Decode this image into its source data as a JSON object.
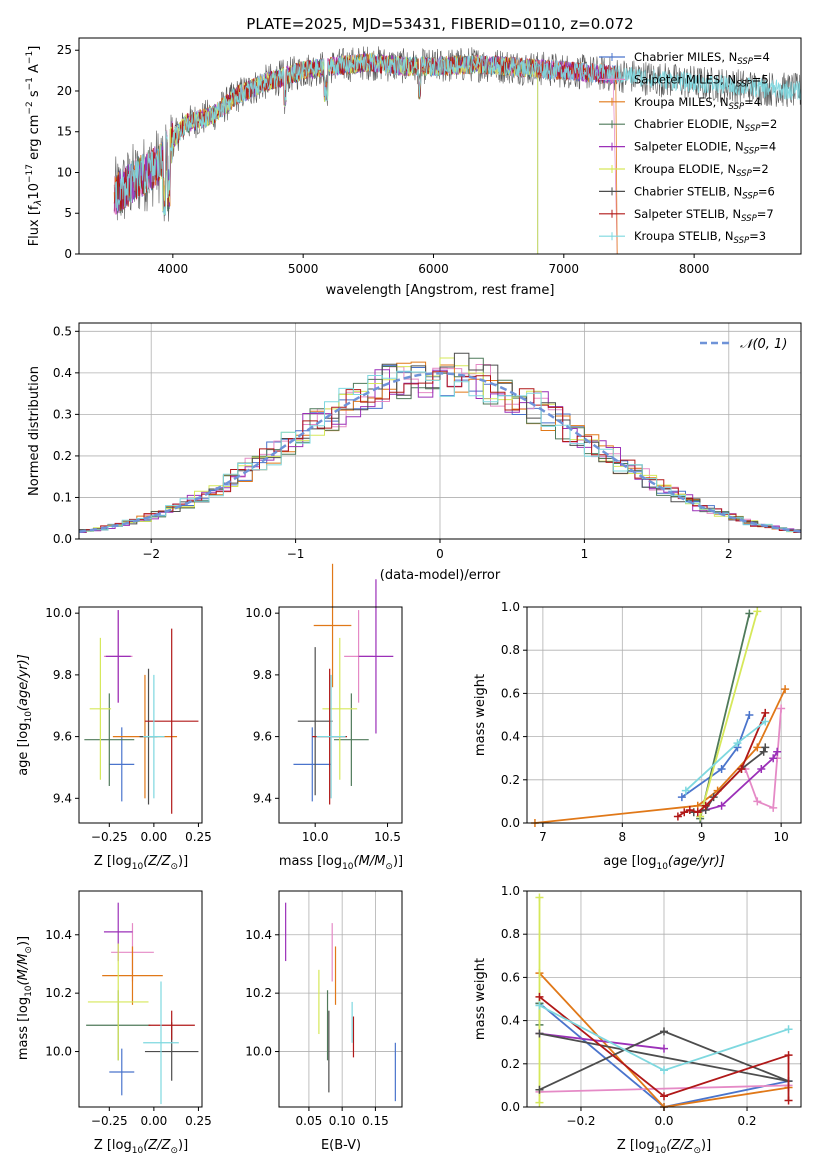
{
  "colors": {
    "chabrier_miles": "#4a74cc",
    "salpeter_miles": "#e58ac6",
    "kroupa_miles": "#e07818",
    "chabrier_elodie": "#4f7a5a",
    "salpeter_elodie": "#9b30b8",
    "kroupa_elodie": "#d6e85a",
    "chabrier_stelib": "#4d4d4d",
    "salpeter_stelib": "#b01818",
    "kroupa_stelib": "#7ed8df",
    "grid": "#b0b0b0",
    "normal_curve": "#6f93d8"
  },
  "spectrum": {
    "title": "PLATE=2025, MJD=53431, FIBERID=0110, z=0.072",
    "xlabel": "wavelength [Angstrom, rest frame]",
    "ylabel_main": "Flux [f",
    "ylabel_lambda": "λ",
    "ylabel_10": "10",
    "ylabel_exp1": "−17",
    "ylabel_unit": " erg cm",
    "ylabel_exp2": "−2",
    "ylabel_s": " s",
    "ylabel_exp3": "−1",
    "ylabel_A": " A",
    "ylabel_exp4": "−1",
    "ylabel_close": "]",
    "xticks": [
      "4000",
      "5000",
      "6000",
      "7000",
      "8000"
    ],
    "yticks": [
      "0",
      "5",
      "10",
      "15",
      "20",
      "25"
    ],
    "legend": [
      {
        "label": "Chabrier MILES, N",
        "sub": "SSP",
        "suffix": "=4"
      },
      {
        "label": "Salpeter MILES, N",
        "sub": "SSP",
        "suffix": "=5"
      },
      {
        "label": "Kroupa MILES, N",
        "sub": "SSP",
        "suffix": "=4"
      },
      {
        "label": "Chabrier ELODIE, N",
        "sub": "SSP",
        "suffix": "=2"
      },
      {
        "label": "Salpeter ELODIE, N",
        "sub": "SSP",
        "suffix": "=4"
      },
      {
        "label": "Kroupa ELODIE, N",
        "sub": "SSP",
        "suffix": "=2"
      },
      {
        "label": "Chabrier STELIB, N",
        "sub": "SSP",
        "suffix": "=6"
      },
      {
        "label": "Salpeter STELIB, N",
        "sub": "SSP",
        "suffix": "=7"
      },
      {
        "label": "Kroupa STELIB, N",
        "sub": "SSP",
        "suffix": "=3"
      }
    ]
  },
  "histogram": {
    "xlabel": "(data-model)/error",
    "ylabel": "Normed distribution",
    "xticks": [
      "−2",
      "−1",
      "0",
      "1",
      "2"
    ],
    "yticks": [
      "0.0",
      "0.1",
      "0.2",
      "0.3",
      "0.4",
      "0.5"
    ],
    "legend_label": "𝒩(0, 1)"
  },
  "scatter": {
    "p1_xlabel_a": "Z [log",
    "p1_xlabel_sub": "10",
    "p1_xlabel_b": "(Z/Z",
    "p1_xlabel_sun": "⊙",
    "p1_xlabel_c": ")]",
    "p1_ylabel_a": "age  [log",
    "p1_ylabel_sub": "10",
    "p1_ylabel_b": "(age/yr)]",
    "p2_xlabel_a": "mass [log",
    "p2_xlabel_sub": "10",
    "p2_xlabel_b": "(M/M",
    "p2_xlabel_sun": "⊙",
    "p2_xlabel_c": ")]",
    "p4_ylabel_a": "mass [log",
    "p4_ylabel_sub": "10",
    "p4_ylabel_b": "(M/M",
    "p4_ylabel_sun": "⊙",
    "p4_ylabel_c": ")]",
    "p5_xlabel": "E(B-V)",
    "p3_xlabel_a": "age  [log",
    "p3_xlabel_sub": "10",
    "p3_xlabel_b": "(age/yr)]",
    "weight_ylabel": "mass weight",
    "z_xticks": [
      "−0.25",
      "0.00",
      "0.25"
    ],
    "age_yticks": [
      "9.4",
      "9.6",
      "9.8",
      "10.0"
    ],
    "mass_xticks": [
      "10.0",
      "10.5"
    ],
    "mass_yticks": [
      "10.0",
      "10.2",
      "10.4"
    ],
    "ebv_xticks": [
      "0.05",
      "0.10",
      "0.15"
    ],
    "age_xticks": [
      "7",
      "8",
      "9",
      "10"
    ],
    "weight_yticks": [
      "0.0",
      "0.2",
      "0.4",
      "0.6",
      "0.8",
      "1.0"
    ],
    "zw_xticks": [
      "−0.2",
      "0.0",
      "0.2"
    ]
  },
  "chart_data": [
    {
      "type": "line",
      "title": "PLATE=2025, MJD=53431, FIBERID=0110, z=0.072",
      "xlabel": "wavelength [Angstrom, rest frame]",
      "ylabel": "Flux [fλ10−17 erg cm−2 s−1 A−1]",
      "xlim": [
        3280,
        8820
      ],
      "ylim": [
        0,
        26.5
      ],
      "legend_position": "upper right",
      "series": [
        {
          "name": "Chabrier MILES, NSSP=4"
        },
        {
          "name": "Salpeter MILES, NSSP=5"
        },
        {
          "name": "Kroupa MILES, NSSP=4"
        },
        {
          "name": "Chabrier ELODIE, NSSP=2"
        },
        {
          "name": "Salpeter ELODIE, NSSP=4"
        },
        {
          "name": "Kroupa ELODIE, NSSP=2"
        },
        {
          "name": "Chabrier STELIB, NSSP=6"
        },
        {
          "name": "Salpeter STELIB, NSSP=7"
        },
        {
          "name": "Kroupa STELIB, NSSP=3"
        }
      ],
      "continuum": {
        "x": [
          3550,
          3700,
          3900,
          4000,
          4100,
          4300,
          4500,
          4700,
          5000,
          5200,
          5500,
          5800,
          6000,
          6300,
          6600,
          7000,
          7400,
          8000,
          8800
        ],
        "y": [
          7,
          9,
          11,
          14,
          16,
          17,
          19.5,
          21,
          22.5,
          23,
          23.5,
          23,
          23,
          23.3,
          23,
          22.5,
          22,
          21,
          20
        ]
      }
    },
    {
      "type": "bar",
      "xlabel": "(data-model)/error",
      "ylabel": "Normed distribution",
      "xlim": [
        -2.5,
        2.5
      ],
      "ylim": [
        0,
        0.52
      ],
      "legend_position": "upper right",
      "bin_width": 0.1,
      "normal_pdf": {
        "name": "𝒩(0, 1)",
        "mean": 0,
        "sigma": 1
      }
    },
    {
      "type": "scatter",
      "xlabel": "Z [log10(Z/Z⊙)]",
      "ylabel": "age  [log10(age/yr)]",
      "xlim": [
        -0.42,
        0.27
      ],
      "ylim": [
        9.32,
        10.02
      ],
      "points": [
        {
          "x": -0.18,
          "y": 9.51,
          "xerr": 0.07,
          "yerr": 0.12
        },
        {
          "x": -0.2,
          "y": 9.86,
          "xerr": 0.08,
          "yerr": 0.15
        },
        {
          "x": -0.05,
          "y": 9.6,
          "xerr": 0.18,
          "yerr": 0.2
        },
        {
          "x": -0.25,
          "y": 9.59,
          "xerr": 0.14,
          "yerr": 0.15
        },
        {
          "x": -0.2,
          "y": 9.86,
          "xerr": 0.07,
          "yerr": 0.15
        },
        {
          "x": -0.3,
          "y": 9.69,
          "xerr": 0.06,
          "yerr": 0.23
        },
        {
          "x": -0.03,
          "y": 9.6,
          "xerr": 0.05,
          "yerr": 0.22
        },
        {
          "x": 0.1,
          "y": 9.65,
          "xerr": 0.15,
          "yerr": 0.3
        },
        {
          "x": 0.0,
          "y": 9.6,
          "xerr": 0.06,
          "yerr": 0.2
        }
      ]
    },
    {
      "type": "scatter",
      "xlabel": "mass [log10(M/M⊙)]",
      "ylabel": "",
      "xlim": [
        9.75,
        10.6
      ],
      "ylim": [
        9.32,
        10.02
      ],
      "points": [
        {
          "x": 9.98,
          "y": 9.51,
          "xerr": 0.13,
          "yerr": 0.12
        },
        {
          "x": 10.3,
          "y": 9.86,
          "xerr": 0.1,
          "yerr": 0.15
        },
        {
          "x": 10.12,
          "y": 9.96,
          "xerr": 0.13,
          "yerr": 0.2
        },
        {
          "x": 10.25,
          "y": 9.59,
          "xerr": 0.12,
          "yerr": 0.15
        },
        {
          "x": 10.42,
          "y": 9.86,
          "xerr": 0.12,
          "yerr": 0.25
        },
        {
          "x": 10.17,
          "y": 9.69,
          "xerr": 0.12,
          "yerr": 0.23
        },
        {
          "x": 10.0,
          "y": 9.65,
          "xerr": 0.12,
          "yerr": 0.24
        },
        {
          "x": 10.1,
          "y": 9.6,
          "xerr": 0.12,
          "yerr": 0.22
        },
        {
          "x": 10.11,
          "y": 9.6,
          "xerr": 0.1,
          "yerr": 0.2
        }
      ]
    },
    {
      "type": "line",
      "xlabel": "age  [log10(age/yr)]",
      "ylabel": "mass weight",
      "xlim": [
        6.8,
        10.25
      ],
      "ylim": [
        0,
        1
      ],
      "series": [
        {
          "name": "Chabrier MILES",
          "x": [
            8.75,
            9.25,
            9.45,
            9.6
          ],
          "y": [
            0.12,
            0.25,
            0.35,
            0.5
          ]
        },
        {
          "name": "Salpeter MILES",
          "x": [
            9.55,
            9.7,
            9.9,
            9.95,
            10.0
          ],
          "y": [
            0.25,
            0.1,
            0.07,
            0.3,
            0.53
          ]
        },
        {
          "name": "Kroupa MILES",
          "x": [
            6.9,
            8.95,
            9.2,
            9.7,
            10.05
          ],
          "y": [
            0.0,
            0.08,
            0.15,
            0.35,
            0.62
          ]
        },
        {
          "name": "Chabrier ELODIE",
          "x": [
            8.98,
            9.6
          ],
          "y": [
            0.02,
            0.97
          ]
        },
        {
          "name": "Salpeter ELODIE",
          "x": [
            8.95,
            9.25,
            9.75,
            9.9,
            9.95
          ],
          "y": [
            0.05,
            0.08,
            0.25,
            0.3,
            0.33
          ]
        },
        {
          "name": "Kroupa ELODIE",
          "x": [
            8.98,
            9.7
          ],
          "y": [
            0.03,
            0.98
          ]
        },
        {
          "name": "Chabrier STELIB",
          "x": [
            8.9,
            9.05,
            9.15,
            9.5,
            9.78,
            9.8
          ],
          "y": [
            0.05,
            0.06,
            0.12,
            0.25,
            0.33,
            0.35
          ]
        },
        {
          "name": "Salpeter STELIB",
          "x": [
            8.7,
            8.78,
            8.85,
            8.95,
            9.05,
            9.5,
            9.8
          ],
          "y": [
            0.03,
            0.05,
            0.06,
            0.05,
            0.08,
            0.25,
            0.51
          ]
        },
        {
          "name": "Kroupa STELIB",
          "x": [
            8.8,
            9.45,
            9.8
          ],
          "y": [
            0.15,
            0.37,
            0.47
          ]
        }
      ]
    },
    {
      "type": "scatter",
      "xlabel": "Z [log10(Z/Z⊙)]",
      "ylabel": "mass [log10(M/M⊙)]",
      "xlim": [
        -0.42,
        0.27
      ],
      "ylim": [
        9.81,
        10.55
      ],
      "points": [
        {
          "x": -0.18,
          "y": 9.93,
          "xerr": 0.07,
          "yerr": 0.08
        },
        {
          "x": -0.12,
          "y": 10.34,
          "xerr": 0.12,
          "yerr": 0.1
        },
        {
          "x": -0.12,
          "y": 10.26,
          "xerr": 0.17,
          "yerr": 0.1
        },
        {
          "x": -0.2,
          "y": 10.09,
          "xerr": 0.18,
          "yerr": 0.12
        },
        {
          "x": -0.2,
          "y": 10.41,
          "xerr": 0.08,
          "yerr": 0.1
        },
        {
          "x": -0.2,
          "y": 10.17,
          "xerr": 0.17,
          "yerr": 0.2
        },
        {
          "x": 0.1,
          "y": 10.0,
          "xerr": 0.15,
          "yerr": 0.1
        },
        {
          "x": 0.1,
          "y": 10.09,
          "xerr": 0.13,
          "yerr": 0.05
        },
        {
          "x": 0.04,
          "y": 10.03,
          "xerr": 0.1,
          "yerr": 0.21
        }
      ]
    },
    {
      "type": "scatter",
      "xlabel": "E(B-V)",
      "ylabel": "",
      "xlim": [
        0.005,
        0.19
      ],
      "ylim": [
        9.81,
        10.55
      ],
      "points": [
        {
          "x": 0.18,
          "y": 9.93,
          "yerr": 0.1
        },
        {
          "x": 0.085,
          "y": 10.34,
          "yerr": 0.1
        },
        {
          "x": 0.09,
          "y": 10.26,
          "yerr": 0.1
        },
        {
          "x": 0.078,
          "y": 10.09,
          "yerr": 0.12
        },
        {
          "x": 0.015,
          "y": 10.41,
          "yerr": 0.1
        },
        {
          "x": 0.065,
          "y": 10.17,
          "yerr": 0.11
        },
        {
          "x": 0.08,
          "y": 10.0,
          "yerr": 0.14
        },
        {
          "x": 0.117,
          "y": 10.05,
          "yerr": 0.07
        },
        {
          "x": 0.115,
          "y": 10.1,
          "yerr": 0.07
        }
      ]
    },
    {
      "type": "line",
      "xlabel": "Z [log10(Z/Z⊙)]",
      "ylabel": "mass weight",
      "xlim": [
        -0.33,
        0.33
      ],
      "ylim": [
        0,
        1
      ],
      "series": [
        {
          "name": "Chabrier MILES",
          "x": [
            -0.3,
            0.0,
            0.3
          ],
          "y": [
            0.48,
            0.0,
            0.12
          ]
        },
        {
          "name": "Salpeter MILES",
          "x": [
            -0.3,
            0.3
          ],
          "y": [
            0.07,
            0.1
          ]
        },
        {
          "name": "Kroupa MILES",
          "x": [
            -0.3,
            0.0,
            0.3
          ],
          "y": [
            0.62,
            0.0,
            0.09
          ]
        },
        {
          "name": "Chabrier ELODIE",
          "x": [
            -0.3,
            -0.3
          ],
          "y": [
            0.48,
            0.38
          ]
        },
        {
          "name": "Salpeter ELODIE",
          "x": [
            -0.3,
            0.0
          ],
          "y": [
            0.34,
            0.27
          ]
        },
        {
          "name": "Kroupa ELODIE",
          "x": [
            -0.3,
            -0.3
          ],
          "y": [
            0.02,
            0.97
          ]
        },
        {
          "name": "Chabrier STELIB",
          "x": [
            -0.3,
            0.0,
            0.3,
            -0.3
          ],
          "y": [
            0.08,
            0.35,
            0.12,
            0.34
          ]
        },
        {
          "name": "Salpeter STELIB",
          "x": [
            -0.3,
            0.0,
            0.3,
            0.3
          ],
          "y": [
            0.51,
            0.05,
            0.24,
            0.03
          ]
        },
        {
          "name": "Kroupa STELIB",
          "x": [
            -0.3,
            0.0,
            0.3
          ],
          "y": [
            0.47,
            0.17,
            0.36
          ]
        }
      ]
    }
  ]
}
